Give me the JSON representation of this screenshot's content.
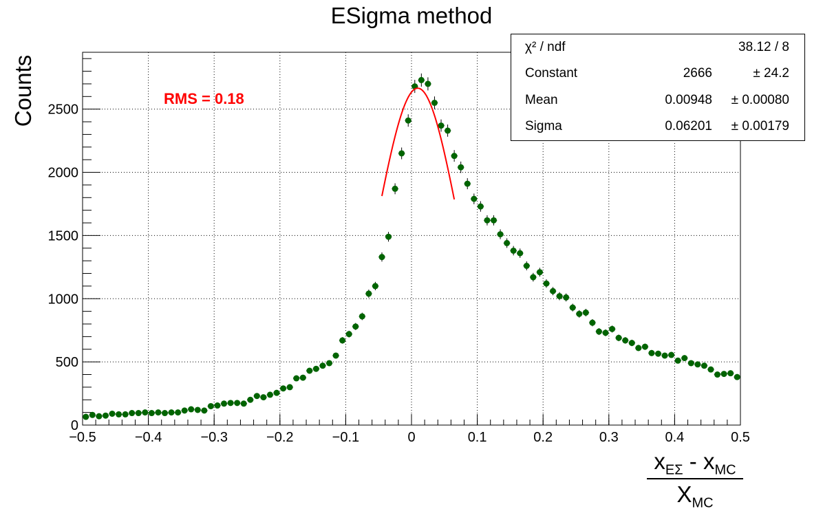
{
  "chart_data": {
    "type": "scatter",
    "title": "ESigma method",
    "ylabel": "Counts",
    "xlabel": {
      "num_main": "x",
      "num_sub": "EΣ",
      "num_mid": " - x",
      "num_sub2": "MC",
      "den_main": "X",
      "den_sub": "MC"
    },
    "xlim": [
      -0.5,
      0.5
    ],
    "ylim": [
      0,
      2950
    ],
    "x_ticks": [
      "−0.5",
      "−0.4",
      "−0.3",
      "−0.2",
      "−0.1",
      "0",
      "0.1",
      "0.2",
      "0.3",
      "0.4",
      "0.5"
    ],
    "y_ticks": [
      "0",
      "500",
      "1000",
      "1500",
      "2000",
      "2500"
    ],
    "grid": true,
    "annotation": "RMS = 0.18",
    "marker_color": "#006400",
    "fit_color": "#ff0000",
    "bin_centers": [
      -0.495,
      -0.485,
      -0.475,
      -0.465,
      -0.455,
      -0.445,
      -0.435,
      -0.425,
      -0.415,
      -0.405,
      -0.395,
      -0.385,
      -0.375,
      -0.365,
      -0.355,
      -0.345,
      -0.335,
      -0.325,
      -0.315,
      -0.305,
      -0.295,
      -0.285,
      -0.275,
      -0.265,
      -0.255,
      -0.245,
      -0.235,
      -0.225,
      -0.215,
      -0.205,
      -0.195,
      -0.185,
      -0.175,
      -0.165,
      -0.155,
      -0.145,
      -0.135,
      -0.125,
      -0.115,
      -0.105,
      -0.095,
      -0.085,
      -0.075,
      -0.065,
      -0.055,
      -0.045,
      -0.035,
      -0.025,
      -0.015,
      -0.005,
      0.005,
      0.015,
      0.025,
      0.035,
      0.045,
      0.055,
      0.065,
      0.075,
      0.085,
      0.095,
      0.105,
      0.115,
      0.125,
      0.135,
      0.145,
      0.155,
      0.165,
      0.175,
      0.185,
      0.195,
      0.205,
      0.215,
      0.225,
      0.235,
      0.245,
      0.255,
      0.265,
      0.275,
      0.285,
      0.295,
      0.305,
      0.315,
      0.325,
      0.335,
      0.345,
      0.355,
      0.365,
      0.375,
      0.385,
      0.395,
      0.405,
      0.415,
      0.425,
      0.435,
      0.445,
      0.455,
      0.465,
      0.475,
      0.485,
      0.495
    ],
    "counts": [
      65,
      80,
      70,
      75,
      90,
      85,
      85,
      95,
      95,
      100,
      95,
      100,
      95,
      100,
      100,
      115,
      125,
      120,
      115,
      150,
      155,
      170,
      175,
      175,
      170,
      200,
      230,
      220,
      240,
      255,
      290,
      300,
      370,
      375,
      430,
      445,
      470,
      490,
      550,
      670,
      720,
      780,
      860,
      1040,
      1100,
      1330,
      1490,
      1870,
      2150,
      2410,
      2680,
      2730,
      2700,
      2550,
      2370,
      2330,
      2130,
      2040,
      1910,
      1790,
      1730,
      1620,
      1620,
      1510,
      1440,
      1380,
      1360,
      1260,
      1170,
      1210,
      1120,
      1060,
      1020,
      1010,
      930,
      880,
      890,
      810,
      740,
      730,
      760,
      690,
      670,
      650,
      610,
      620,
      570,
      565,
      550,
      555,
      510,
      530,
      490,
      480,
      470,
      440,
      400,
      405,
      410,
      380
    ],
    "fit": {
      "type": "gaus",
      "constant": 2666,
      "mean": 0.00948,
      "sigma": 0.06201,
      "range": [
        -0.045,
        0.065
      ]
    },
    "stats": [
      {
        "name": "χ² / ndf",
        "value": "38.12 / 8",
        "error": ""
      },
      {
        "name": "Constant",
        "value": "2666",
        "error": "± 24.2"
      },
      {
        "name": "Mean",
        "value": "0.00948",
        "error": "± 0.00080"
      },
      {
        "name": "Sigma",
        "value": "0.06201",
        "error": "± 0.00179"
      }
    ]
  }
}
